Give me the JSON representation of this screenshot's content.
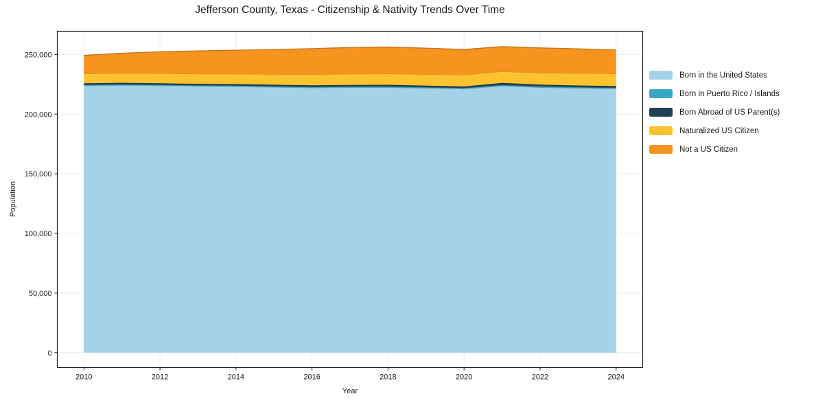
{
  "chart_data": {
    "type": "area",
    "stacked": true,
    "title": "Jefferson County, Texas - Citizenship & Nativity Trends Over Time",
    "xlabel": "Year",
    "ylabel": "Population",
    "grid": true,
    "legend_position": "right-outside",
    "x": [
      2010,
      2011,
      2012,
      2013,
      2014,
      2015,
      2016,
      2017,
      2018,
      2019,
      2020,
      2021,
      2022,
      2023,
      2024
    ],
    "xlim": [
      2009.3,
      2024.7
    ],
    "ylim": [
      -12500,
      269500
    ],
    "x_ticks": [
      {
        "value": 2010,
        "label": "2010"
      },
      {
        "value": 2012,
        "label": "2012"
      },
      {
        "value": 2014,
        "label": "2014"
      },
      {
        "value": 2016,
        "label": "2016"
      },
      {
        "value": 2018,
        "label": "2018"
      },
      {
        "value": 2020,
        "label": "2020"
      },
      {
        "value": 2022,
        "label": "2022"
      },
      {
        "value": 2024,
        "label": "2024"
      }
    ],
    "y_ticks": [
      {
        "value": 0,
        "label": "0"
      },
      {
        "value": 50000,
        "label": "50,000"
      },
      {
        "value": 100000,
        "label": "100,000"
      },
      {
        "value": 150000,
        "label": "150,000"
      },
      {
        "value": 200000,
        "label": "200,000"
      },
      {
        "value": 250000,
        "label": "250,000"
      }
    ],
    "series": [
      {
        "id": "born-us",
        "name": "Born in the United States",
        "color": "#a5d2e8",
        "values": [
          223900,
          224200,
          223900,
          223500,
          223200,
          222600,
          222100,
          222400,
          222400,
          221800,
          221200,
          223600,
          222400,
          221800,
          221300
        ]
      },
      {
        "id": "puerto-rico-islands",
        "name": "Born in Puerto Rico / Islands",
        "color": "#3aa7c6",
        "values": [
          650,
          700,
          700,
          650,
          700,
          750,
          700,
          750,
          800,
          750,
          700,
          900,
          850,
          800,
          800
        ]
      },
      {
        "id": "born-abroad",
        "name": "Born Abroad of US Parent(s)",
        "color": "#1f4257",
        "values": [
          1300,
          1350,
          1300,
          1250,
          1300,
          1350,
          1400,
          1350,
          1400,
          1350,
          1300,
          1700,
          1500,
          1450,
          1400
        ]
      },
      {
        "id": "naturalized",
        "name": "Naturalized US Citizen",
        "color": "#fcc32f",
        "values": [
          8000,
          8100,
          8200,
          8400,
          8500,
          8800,
          9100,
          9200,
          9300,
          9500,
          9800,
          9600,
          9900,
          10200,
          10400
        ]
      },
      {
        "id": "not-citizen",
        "name": "Not a US Citizen",
        "color": "#f79420",
        "values": [
          15400,
          16700,
          18200,
          19200,
          19900,
          20700,
          21600,
          22200,
          22400,
          21900,
          21200,
          20800,
          20900,
          20500,
          20000
        ]
      }
    ],
    "colors": {
      "grid": "#ececec",
      "spine": "#1a1a1a",
      "text": "#1a1a1a",
      "background": "#ffffff"
    }
  }
}
